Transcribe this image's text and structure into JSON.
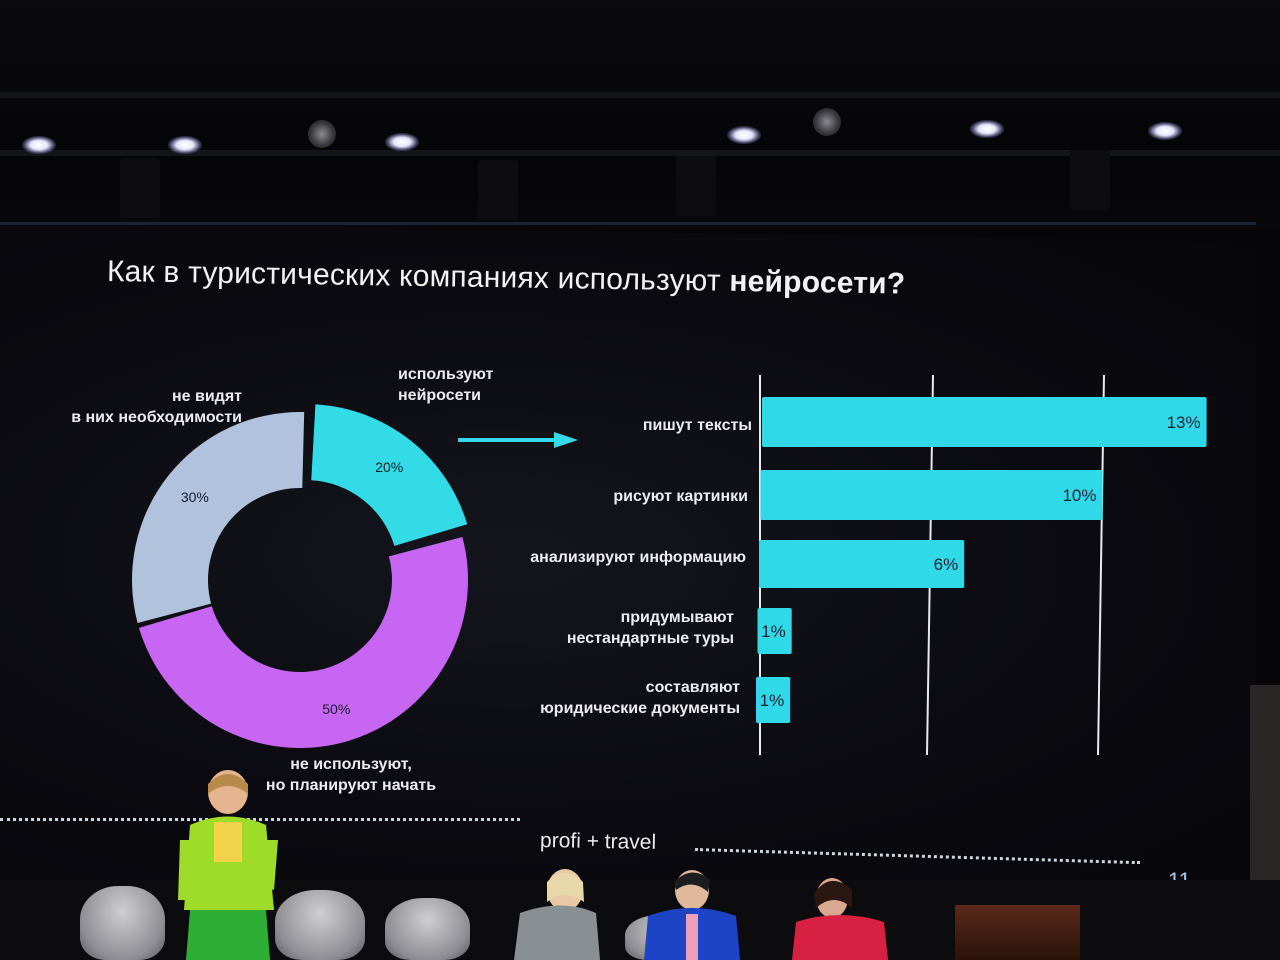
{
  "slide": {
    "title_regular": "Как в туристических компаниях используют",
    "title_bold": "нейросети?",
    "page_number": "11",
    "brand": "profi + travel"
  },
  "donut": {
    "segments": [
      {
        "label_line1": "используют",
        "label_line2": "нейросети",
        "value": 20,
        "value_text": "20%",
        "color": "#33dbe7"
      },
      {
        "label_line1": "не используют,",
        "label_line2": "но планируют начать",
        "value": 50,
        "value_text": "50%",
        "color": "#c766f2"
      },
      {
        "label_line1": "не видят",
        "label_line2": "в них необходимости",
        "value": 30,
        "value_text": "30%",
        "color": "#b0c2dc"
      }
    ]
  },
  "chart_data": {
    "type": "bar",
    "orientation": "horizontal",
    "categories": [
      [
        "пишут тексты"
      ],
      [
        "рисуют картинки"
      ],
      [
        "анализируют информацию"
      ],
      [
        "придумывают",
        "нестандартные туры"
      ],
      [
        "составляют",
        "юридические документы"
      ]
    ],
    "values": [
      13,
      10,
      6,
      1,
      1
    ],
    "value_labels": [
      "13%",
      "10%",
      "6%",
      "1%",
      "1%"
    ],
    "color": "#2fd9e8",
    "xlim": [
      0,
      13.5
    ],
    "grid": true
  }
}
